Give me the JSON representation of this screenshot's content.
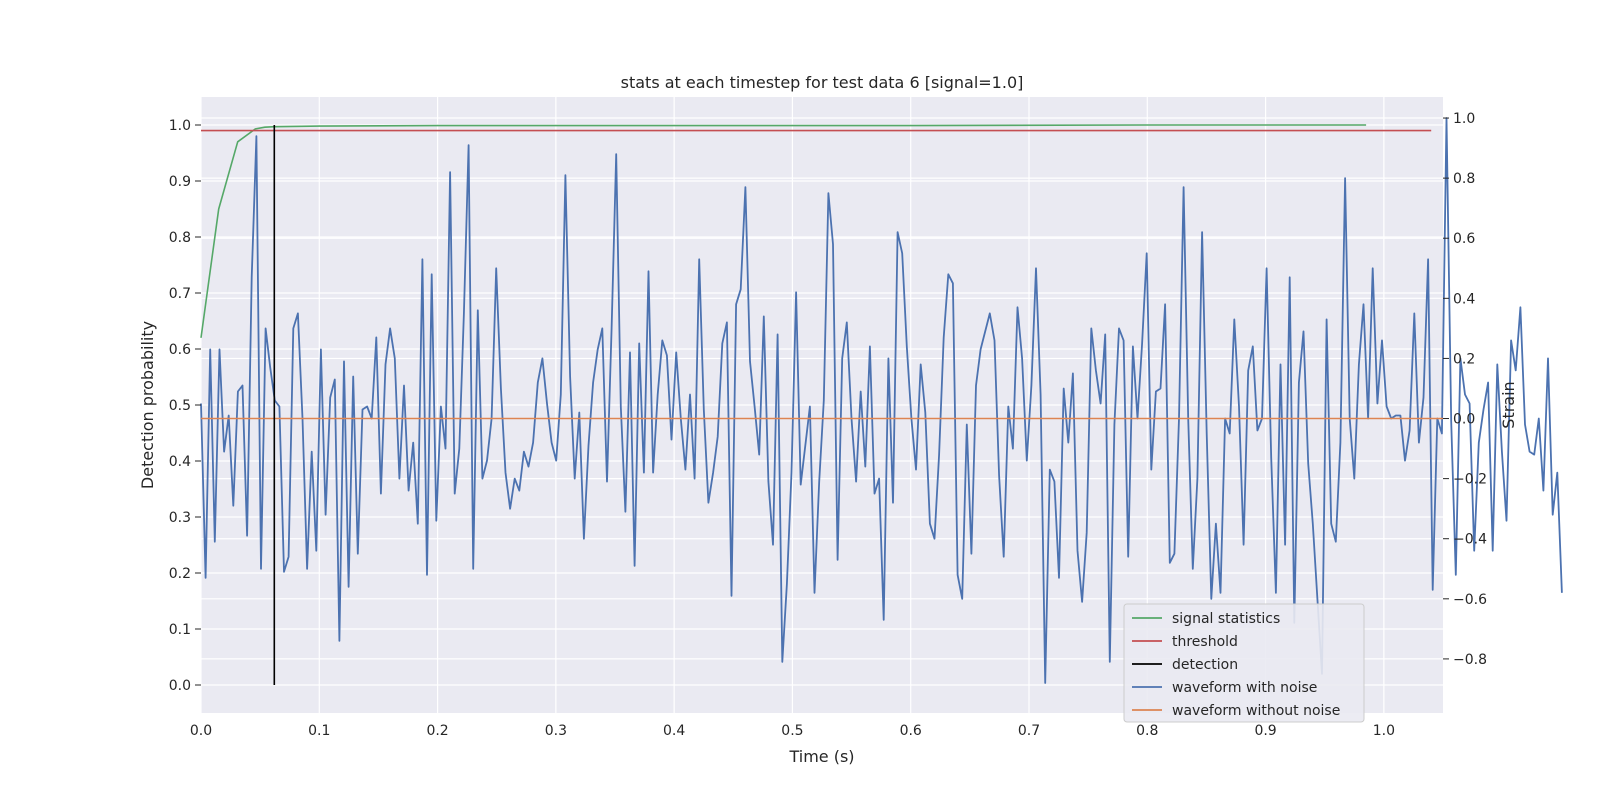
{
  "chart_data": {
    "type": "line",
    "title": "stats at each timestep for test data 6 [signal=1.0]",
    "xlabel": "Time (s)",
    "ylabel": "Detection probability",
    "y2label": "Strain",
    "xlim": [
      0.0,
      1.05
    ],
    "ylim": [
      -0.05,
      1.05
    ],
    "y2lim": [
      -0.98,
      1.07
    ],
    "grid": true,
    "legend_position": "lower-right",
    "xticks": [
      "0.0",
      "0.1",
      "0.2",
      "0.3",
      "0.4",
      "0.5",
      "0.6",
      "0.7",
      "0.8",
      "0.9",
      "1.0"
    ],
    "yticks": [
      "0.0",
      "0.1",
      "0.2",
      "0.3",
      "0.4",
      "0.5",
      "0.6",
      "0.7",
      "0.8",
      "0.9",
      "1.0"
    ],
    "y2ticks": [
      "−0.8",
      "−0.6",
      "−0.4",
      "−0.2",
      "0.0",
      "0.2",
      "0.4",
      "0.6",
      "0.8",
      "1.0"
    ],
    "colors": {
      "background": "#eaeaf2",
      "grid": "#ffffff",
      "signal": "#55a868",
      "threshold": "#c44e52",
      "detection": "#000000",
      "noisy": "#4c72b0",
      "clean": "#dd8452"
    },
    "series": [
      {
        "name": "signal statistics",
        "axis": "left",
        "x": [
          0.0,
          0.015,
          0.031,
          0.046,
          0.054,
          0.062,
          0.1,
          0.2,
          0.4,
          0.6,
          0.8,
          0.985
        ],
        "y": [
          0.62,
          0.85,
          0.97,
          0.993,
          0.996,
          0.997,
          0.998,
          0.999,
          0.999,
          0.999,
          1.0,
          1.0
        ]
      },
      {
        "name": "threshold",
        "axis": "left",
        "x": [
          0.0,
          1.04
        ],
        "y": [
          0.99,
          0.99
        ]
      },
      {
        "name": "detection",
        "axis": "left",
        "x": [
          0.062,
          0.062
        ],
        "y": [
          0.0,
          1.0
        ]
      },
      {
        "name": "waveform with noise",
        "axis": "right",
        "x_start": 0.0,
        "x_step": 0.0039,
        "y": [
          0.05,
          -0.53,
          0.23,
          -0.41,
          0.23,
          -0.11,
          0.01,
          -0.29,
          0.09,
          0.11,
          -0.39,
          0.47,
          0.94,
          -0.5,
          0.3,
          0.17,
          0.06,
          0.04,
          -0.51,
          -0.46,
          0.3,
          0.35,
          0.0,
          -0.5,
          -0.11,
          -0.44,
          0.23,
          -0.32,
          0.07,
          0.13,
          -0.74,
          0.19,
          -0.56,
          0.14,
          -0.45,
          0.03,
          0.04,
          0.0,
          0.27,
          -0.25,
          0.18,
          0.3,
          0.2,
          -0.2,
          0.11,
          -0.24,
          -0.08,
          -0.35,
          0.53,
          -0.52,
          0.48,
          -0.34,
          0.04,
          -0.1,
          0.82,
          -0.25,
          -0.1,
          0.35,
          0.91,
          -0.5,
          0.36,
          -0.2,
          -0.14,
          0.0,
          0.5,
          0.1,
          -0.18,
          -0.3,
          -0.2,
          -0.24,
          -0.11,
          -0.16,
          -0.08,
          0.12,
          0.2,
          0.05,
          -0.08,
          -0.14,
          0.08,
          0.81,
          0.14,
          -0.2,
          0.02,
          -0.4,
          -0.09,
          0.12,
          0.23,
          0.3,
          -0.21,
          0.3,
          0.88,
          0.04,
          -0.31,
          0.22,
          -0.49,
          0.25,
          -0.18,
          0.49,
          -0.18,
          0.08,
          0.26,
          0.21,
          -0.07,
          0.22,
          0.0,
          -0.17,
          0.08,
          -0.2,
          0.53,
          0.03,
          -0.28,
          -0.18,
          -0.06,
          0.25,
          0.32,
          -0.59,
          0.38,
          0.43,
          0.77,
          0.19,
          0.04,
          -0.12,
          0.34,
          -0.21,
          -0.42,
          0.28,
          -0.81,
          -0.55,
          -0.18,
          0.42,
          -0.22,
          -0.09,
          0.04,
          -0.58,
          -0.21,
          0.06,
          0.75,
          0.58,
          -0.47,
          0.2,
          0.32,
          0.0,
          -0.21,
          0.09,
          -0.16,
          0.24,
          -0.25,
          -0.2,
          -0.67,
          0.2,
          -0.28,
          0.62,
          0.55,
          0.24,
          0.0,
          -0.17,
          0.18,
          0.02,
          -0.35,
          -0.4,
          -0.12,
          0.27,
          0.48,
          0.45,
          -0.52,
          -0.6,
          -0.02,
          -0.45,
          0.11,
          0.23,
          0.29,
          0.35,
          0.26,
          -0.19,
          -0.46,
          0.04,
          -0.1,
          0.37,
          0.2,
          -0.14,
          0.11,
          0.5,
          0.08,
          -0.88,
          -0.17,
          -0.21,
          -0.53,
          0.1,
          -0.08,
          0.15,
          -0.44,
          -0.61,
          -0.38,
          0.3,
          0.16,
          0.05,
          0.28,
          -0.81,
          -0.02,
          0.3,
          0.26,
          -0.46,
          0.24,
          0.0,
          0.25,
          0.55,
          -0.17,
          0.09,
          0.1,
          0.38,
          -0.48,
          -0.45,
          0.0,
          0.77,
          0.0,
          -0.5,
          -0.2,
          0.62,
          -0.05,
          -0.6,
          -0.35,
          -0.58,
          0.0,
          -0.05,
          0.33,
          0.04,
          -0.42,
          0.16,
          0.24,
          -0.04,
          0.0,
          0.5,
          -0.13,
          -0.58,
          0.18,
          -0.42,
          0.47,
          -0.68,
          0.12,
          0.29,
          -0.15,
          -0.35,
          -0.6,
          -0.85,
          0.33,
          -0.35,
          -0.41,
          -0.08,
          0.8,
          0.0,
          -0.2,
          0.18,
          0.38,
          0.0,
          0.5,
          0.05,
          0.26,
          0.04,
          0.0,
          0.01,
          0.01,
          -0.14,
          -0.04,
          0.35,
          -0.08,
          0.07,
          0.53,
          -0.57,
          0.0,
          -0.05,
          1.0,
          -0.01,
          -0.52,
          0.2,
          0.08,
          0.05,
          -0.44,
          -0.08,
          0.03,
          0.12,
          -0.44,
          0.18,
          -0.11,
          -0.34,
          0.26,
          0.16,
          0.37,
          -0.02,
          -0.11,
          -0.12,
          0.0,
          -0.24,
          0.2,
          -0.32,
          -0.18,
          -0.58
        ]
      },
      {
        "name": "waveform without noise",
        "axis": "right",
        "x": [
          0.0,
          1.05
        ],
        "y": [
          0.0,
          0.0
        ]
      }
    ]
  }
}
